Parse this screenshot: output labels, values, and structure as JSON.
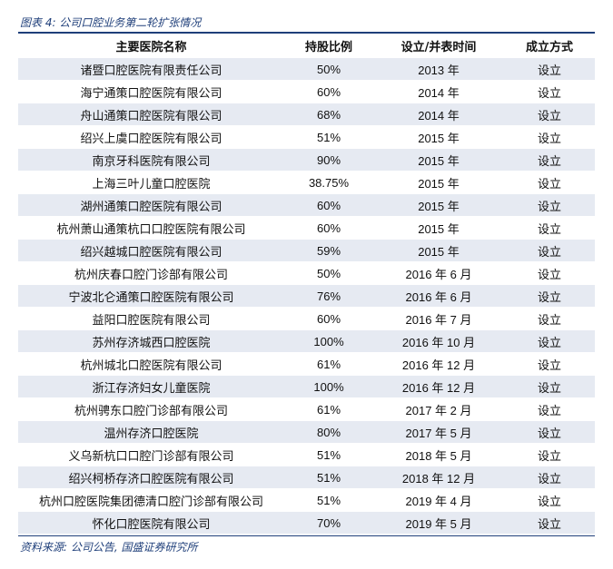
{
  "caption": "图表 4:  公司口腔业务第二轮扩张情况",
  "table": {
    "headers": [
      "主要医院名称",
      "持股比例",
      "设立/并表时间",
      "成立方式"
    ],
    "rows": [
      {
        "name": "诸暨口腔医院有限责任公司",
        "share": "50%",
        "time": "2013 年",
        "method": "设立"
      },
      {
        "name": "海宁通策口腔医院有限公司",
        "share": "60%",
        "time": "2014 年",
        "method": "设立"
      },
      {
        "name": "舟山通策口腔医院有限公司",
        "share": "68%",
        "time": "2014 年",
        "method": "设立"
      },
      {
        "name": "绍兴上虞口腔医院有限公司",
        "share": "51%",
        "time": "2015 年",
        "method": "设立"
      },
      {
        "name": "南京牙科医院有限公司",
        "share": "90%",
        "time": "2015 年",
        "method": "设立"
      },
      {
        "name": "上海三叶儿童口腔医院",
        "share": "38.75%",
        "time": "2015 年",
        "method": "设立"
      },
      {
        "name": "湖州通策口腔医院有限公司",
        "share": "60%",
        "time": "2015 年",
        "method": "设立"
      },
      {
        "name": "杭州萧山通策杭口口腔医院有限公司",
        "share": "60%",
        "time": "2015 年",
        "method": "设立"
      },
      {
        "name": "绍兴越城口腔医院有限公司",
        "share": "59%",
        "time": "2015 年",
        "method": "设立"
      },
      {
        "name": "杭州庆春口腔门诊部有限公司",
        "share": "50%",
        "time": "2016 年 6 月",
        "method": "设立"
      },
      {
        "name": "宁波北仑通策口腔医院有限公司",
        "share": "76%",
        "time": "2016 年 6 月",
        "method": "设立"
      },
      {
        "name": "益阳口腔医院有限公司",
        "share": "60%",
        "time": "2016 年 7 月",
        "method": "设立"
      },
      {
        "name": "苏州存济城西口腔医院",
        "share": "100%",
        "time": "2016 年 10 月",
        "method": "设立"
      },
      {
        "name": "杭州城北口腔医院有限公司",
        "share": "61%",
        "time": "2016 年 12 月",
        "method": "设立"
      },
      {
        "name": "浙江存济妇女儿童医院",
        "share": "100%",
        "time": "2016 年 12 月",
        "method": "设立"
      },
      {
        "name": "杭州骋东口腔门诊部有限公司",
        "share": "61%",
        "time": "2017 年 2 月",
        "method": "设立"
      },
      {
        "name": "温州存济口腔医院",
        "share": "80%",
        "time": "2017 年 5 月",
        "method": "设立"
      },
      {
        "name": "义乌新杭口口腔门诊部有限公司",
        "share": "51%",
        "time": "2018 年 5 月",
        "method": "设立"
      },
      {
        "name": "绍兴柯桥存济口腔医院有限公司",
        "share": "51%",
        "time": "2018 年 12 月",
        "method": "设立"
      },
      {
        "name": "杭州口腔医院集团德清口腔门诊部有限公司",
        "share": "51%",
        "time": "2019 年 4 月",
        "method": "设立"
      },
      {
        "name": "怀化口腔医院有限公司",
        "share": "70%",
        "time": "2019 年 5 月",
        "method": "设立"
      }
    ]
  },
  "source": "资料来源:  公司公告,  国盛证券研究所",
  "colors": {
    "accent": "#1f3f7a",
    "row_shade": "#e6eaf2"
  }
}
